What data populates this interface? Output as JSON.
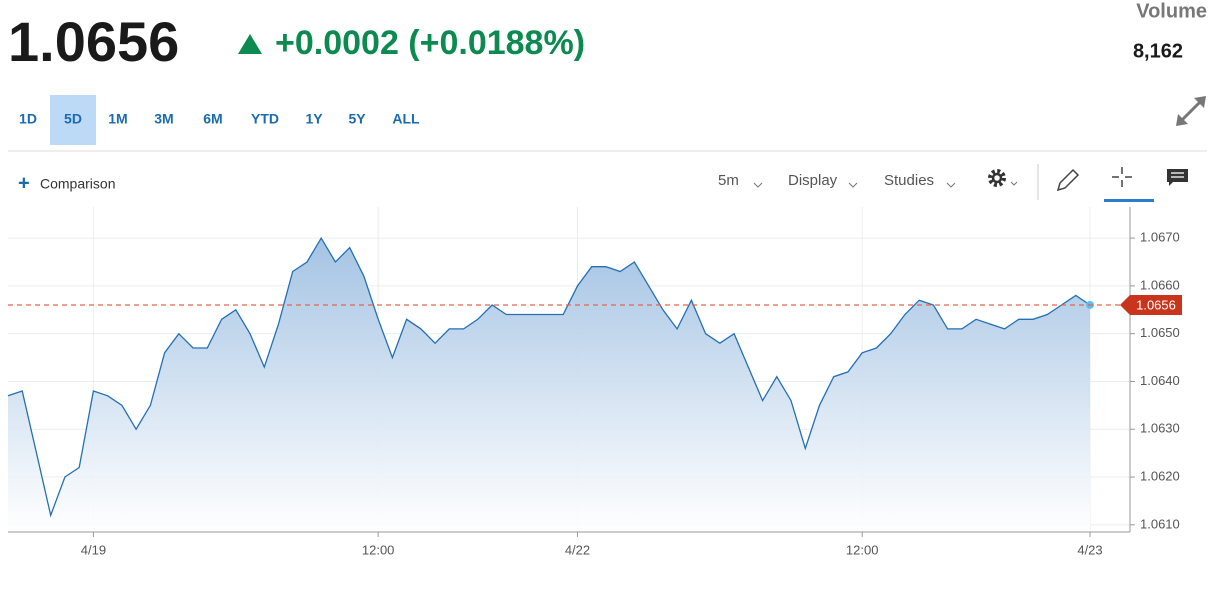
{
  "header": {
    "price": "1.0656",
    "change": "+0.0002 (+0.0188%)",
    "volume_label": "Volume",
    "volume": "8,162"
  },
  "ranges": [
    "1D",
    "5D",
    "1M",
    "3M",
    "6M",
    "YTD",
    "1Y",
    "5Y",
    "ALL"
  ],
  "toolbar": {
    "comparison": "Comparison",
    "interval": "5m",
    "display": "Display",
    "studies": "Studies"
  },
  "chart_data": {
    "type": "area",
    "categories": [
      null,
      null,
      null,
      null,
      null,
      null,
      "4/19",
      null,
      null,
      null,
      null,
      null,
      null,
      null,
      null,
      null,
      null,
      null,
      null,
      null,
      null,
      null,
      null,
      null,
      null,
      null,
      "12:00",
      null,
      null,
      null,
      null,
      null,
      null,
      null,
      null,
      null,
      null,
      null,
      null,
      null,
      "4/22",
      null,
      null,
      null,
      null,
      null,
      null,
      null,
      null,
      null,
      null,
      null,
      null,
      null,
      null,
      null,
      null,
      null,
      null,
      null,
      "12:00",
      null,
      null,
      null,
      null,
      null,
      null,
      null,
      null,
      null,
      null,
      null,
      null,
      null,
      null,
      null,
      "4/23"
    ],
    "series": [
      {
        "color": "#2470b3",
        "values": [
          1.0637,
          1.0638,
          1.0625,
          1.0612,
          1.062,
          1.0622,
          1.0638,
          1.0637,
          1.0635,
          1.063,
          1.0635,
          1.0646,
          1.065,
          1.0647,
          1.0647,
          1.0653,
          1.0655,
          1.065,
          1.0643,
          1.0652,
          1.0663,
          1.0665,
          1.067,
          1.0665,
          1.0668,
          1.0662,
          1.0653,
          1.0645,
          1.0653,
          1.0651,
          1.0648,
          1.0651,
          1.0651,
          1.0653,
          1.0656,
          1.0654,
          1.0654,
          1.0654,
          1.0654,
          1.0654,
          1.066,
          1.0664,
          1.0664,
          1.0663,
          1.0665,
          1.066,
          1.0655,
          1.0651,
          1.0657,
          1.065,
          1.0648,
          1.065,
          1.0643,
          1.0636,
          1.0641,
          1.0636,
          1.0626,
          1.0635,
          1.0641,
          1.0642,
          1.0646,
          1.0647,
          1.065,
          1.0654,
          1.0657,
          1.0656,
          1.0651,
          1.0651,
          1.0653,
          1.0652,
          1.0651,
          1.0653,
          1.0653,
          1.0654,
          1.0656,
          1.0658,
          1.0656
        ]
      }
    ],
    "last_price": 1.0656,
    "ylim": [
      1.06085,
      1.06765
    ],
    "yticks": [
      {
        "value": 1.061,
        "label": "1.0610"
      },
      {
        "value": 1.062,
        "label": "1.0620"
      },
      {
        "value": 1.063,
        "label": "1.0630"
      },
      {
        "value": 1.064,
        "label": "1.0640"
      },
      {
        "value": 1.065,
        "label": "1.0650"
      },
      {
        "value": 1.066,
        "label": "1.0660"
      },
      {
        "value": 1.067,
        "label": "1.0670"
      }
    ],
    "grid": true
  }
}
